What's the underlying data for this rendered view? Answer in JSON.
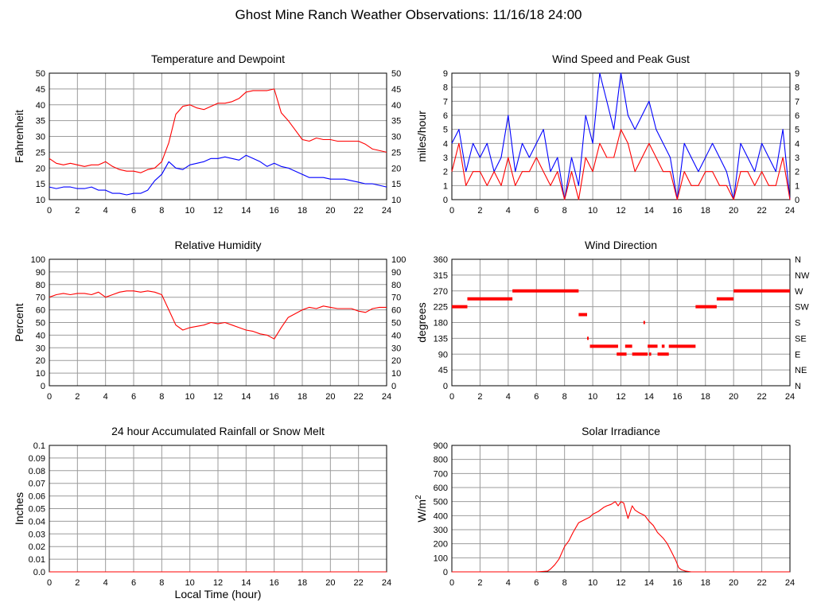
{
  "title": "Ghost Mine Ranch Weather Observations: 11/16/18 24:00",
  "colors": {
    "series_red": "#ff0000",
    "series_blue": "#0000ff",
    "grid": "#9b9b9b",
    "frame": "#000000"
  },
  "footer_xlabel": "Local Time (hour)",
  "chart_data": [
    {
      "id": "temp",
      "type": "line",
      "title": "Temperature and Dewpoint",
      "xlabel": "",
      "ylabel": "Fahrenheit",
      "xlim": [
        0,
        24
      ],
      "xticks": [
        0,
        2,
        4,
        6,
        8,
        10,
        12,
        14,
        16,
        18,
        20,
        22,
        24
      ],
      "ylim": [
        10,
        50
      ],
      "yticks": [
        10,
        15,
        20,
        25,
        30,
        35,
        40,
        45,
        50
      ],
      "right_ticks": [
        "10",
        "15",
        "20",
        "25",
        "30",
        "35",
        "40",
        "45",
        "50"
      ],
      "grid": true,
      "series": [
        {
          "color": "#ff0000",
          "x": [
            0,
            0.5,
            1,
            1.5,
            2,
            2.5,
            3,
            3.5,
            4,
            4.5,
            5,
            5.5,
            6,
            6.5,
            7,
            7.5,
            8,
            8.5,
            9,
            9.5,
            10,
            10.5,
            11,
            11.5,
            12,
            12.5,
            13,
            13.5,
            14,
            14.5,
            15,
            15.5,
            16,
            16.5,
            17,
            17.5,
            18,
            18.5,
            19,
            19.5,
            20,
            20.5,
            21,
            21.5,
            22,
            22.5,
            23,
            23.5,
            24
          ],
          "y": [
            23,
            21.5,
            21,
            21.5,
            21,
            20.5,
            21,
            21,
            22,
            20.5,
            19.5,
            19,
            19,
            18.5,
            19.5,
            20,
            22,
            28,
            37,
            39.5,
            40,
            39,
            38.5,
            39.5,
            40.5,
            40.5,
            41,
            42,
            44,
            44.5,
            44.5,
            44.5,
            45,
            37.5,
            35,
            32,
            29,
            28.5,
            29.5,
            29,
            29,
            28.5,
            28.5,
            28.5,
            28.5,
            27.5,
            26,
            25.5,
            25
          ]
        },
        {
          "color": "#0000ff",
          "x": [
            0,
            0.5,
            1,
            1.5,
            2,
            2.5,
            3,
            3.5,
            4,
            4.5,
            5,
            5.5,
            6,
            6.5,
            7,
            7.5,
            8,
            8.5,
            9,
            9.5,
            10,
            10.5,
            11,
            11.5,
            12,
            12.5,
            13,
            13.5,
            14,
            14.5,
            15,
            15.5,
            16,
            16.5,
            17,
            17.5,
            18,
            18.5,
            19,
            19.5,
            20,
            20.5,
            21,
            21.5,
            22,
            22.5,
            23,
            23.5,
            24
          ],
          "y": [
            14,
            13.5,
            14,
            14,
            13.5,
            13.5,
            14,
            13,
            13,
            12,
            12,
            11.5,
            12,
            12,
            13,
            16,
            18,
            22,
            20,
            19.5,
            21,
            21.5,
            22,
            23,
            23,
            23.5,
            23,
            22.5,
            24,
            23,
            22,
            20.5,
            21.5,
            20.5,
            20,
            19,
            18,
            17,
            17,
            17,
            16.5,
            16.5,
            16.5,
            16,
            15.5,
            15,
            15,
            14.5,
            14
          ]
        }
      ]
    },
    {
      "id": "wind",
      "type": "line",
      "title": "Wind Speed and Peak Gust",
      "xlabel": "",
      "ylabel": "miles/hour",
      "xlim": [
        0,
        24
      ],
      "xticks": [
        0,
        2,
        4,
        6,
        8,
        10,
        12,
        14,
        16,
        18,
        20,
        22,
        24
      ],
      "ylim": [
        0,
        9
      ],
      "yticks": [
        0,
        1,
        2,
        3,
        4,
        5,
        6,
        7,
        8,
        9
      ],
      "right_ticks": [
        "0",
        "1",
        "2",
        "3",
        "4",
        "5",
        "6",
        "7",
        "8",
        "9"
      ],
      "grid": true,
      "series": [
        {
          "color": "#0000ff",
          "x": [
            0,
            0.5,
            1,
            1.5,
            2,
            2.5,
            3,
            3.5,
            4,
            4.5,
            5,
            5.5,
            6,
            6.5,
            7,
            7.5,
            8,
            8.5,
            9,
            9.5,
            10,
            10.5,
            11,
            11.5,
            12,
            12.5,
            13,
            13.5,
            14,
            14.5,
            15,
            15.5,
            16,
            16.5,
            17,
            17.5,
            18,
            18.5,
            19,
            19.5,
            20,
            20.5,
            21,
            21.5,
            22,
            22.5,
            23,
            23.5,
            24
          ],
          "y": [
            4,
            5,
            2,
            4,
            3,
            4,
            2,
            3,
            6,
            2,
            4,
            3,
            4,
            5,
            2,
            3,
            0,
            3,
            1,
            6,
            4,
            9,
            7,
            5,
            9,
            6,
            5,
            6,
            7,
            5,
            4,
            3,
            0,
            4,
            3,
            2,
            3,
            4,
            3,
            2,
            0,
            4,
            3,
            2,
            4,
            3,
            2,
            5,
            0
          ]
        },
        {
          "color": "#ff0000",
          "x": [
            0,
            0.5,
            1,
            1.5,
            2,
            2.5,
            3,
            3.5,
            4,
            4.5,
            5,
            5.5,
            6,
            6.5,
            7,
            7.5,
            8,
            8.5,
            9,
            9.5,
            10,
            10.5,
            11,
            11.5,
            12,
            12.5,
            13,
            13.5,
            14,
            14.5,
            15,
            15.5,
            16,
            16.5,
            17,
            17.5,
            18,
            18.5,
            19,
            19.5,
            20,
            20.5,
            21,
            21.5,
            22,
            22.5,
            23,
            23.5,
            24
          ],
          "y": [
            2,
            4,
            1,
            2,
            2,
            1,
            2,
            1,
            3,
            1,
            2,
            2,
            3,
            2,
            1,
            2,
            0,
            2,
            0,
            3,
            2,
            4,
            3,
            3,
            5,
            4,
            2,
            3,
            4,
            3,
            2,
            2,
            0,
            2,
            1,
            1,
            2,
            2,
            1,
            1,
            0,
            2,
            2,
            1,
            2,
            1,
            1,
            3,
            0
          ]
        }
      ]
    },
    {
      "id": "rh",
      "type": "line",
      "title": "Relative Humidity",
      "xlabel": "",
      "ylabel": "Percent",
      "xlim": [
        0,
        24
      ],
      "xticks": [
        0,
        2,
        4,
        6,
        8,
        10,
        12,
        14,
        16,
        18,
        20,
        22,
        24
      ],
      "ylim": [
        0,
        100
      ],
      "yticks": [
        0,
        10,
        20,
        30,
        40,
        50,
        60,
        70,
        80,
        90,
        100
      ],
      "right_ticks": [
        "0",
        "10",
        "20",
        "30",
        "40",
        "50",
        "60",
        "70",
        "80",
        "90",
        "100"
      ],
      "grid": true,
      "series": [
        {
          "color": "#ff0000",
          "x": [
            0,
            0.5,
            1,
            1.5,
            2,
            2.5,
            3,
            3.5,
            4,
            4.5,
            5,
            5.5,
            6,
            6.5,
            7,
            7.5,
            8,
            8.5,
            9,
            9.5,
            10,
            10.5,
            11,
            11.5,
            12,
            12.5,
            13,
            13.5,
            14,
            14.5,
            15,
            15.5,
            16,
            16.5,
            17,
            17.5,
            18,
            18.5,
            19,
            19.5,
            20,
            20.5,
            21,
            21.5,
            22,
            22.5,
            23,
            23.5,
            24
          ],
          "y": [
            70,
            72,
            73,
            72,
            73,
            73,
            72,
            74,
            70,
            72,
            74,
            75,
            75,
            74,
            75,
            74,
            72,
            60,
            48,
            44,
            46,
            47,
            48,
            50,
            49,
            50,
            48,
            46,
            44,
            43,
            41,
            40,
            37,
            46,
            54,
            57,
            60,
            62,
            61,
            63,
            62,
            61,
            61,
            61,
            59,
            58,
            61,
            62,
            62
          ]
        }
      ]
    },
    {
      "id": "winddir",
      "type": "scatter",
      "title": "Wind Direction",
      "xlabel": "",
      "ylabel": "degrees",
      "xlim": [
        0,
        24
      ],
      "xticks": [
        0,
        2,
        4,
        6,
        8,
        10,
        12,
        14,
        16,
        18,
        20,
        22,
        24
      ],
      "ylim": [
        0,
        360
      ],
      "yticks": [
        0,
        45,
        90,
        135,
        180,
        225,
        270,
        315,
        360
      ],
      "right_ticks": [
        "N",
        "NE",
        "E",
        "SE",
        "S",
        "SW",
        "W",
        "NW",
        "N"
      ],
      "grid": true,
      "segments": [
        {
          "x0": 0,
          "x1": 1.1,
          "y": 225
        },
        {
          "x0": 1.1,
          "x1": 4.3,
          "y": 247.5
        },
        {
          "x0": 4.3,
          "x1": 9.0,
          "y": 270
        },
        {
          "x0": 9.0,
          "x1": 9.6,
          "y": 202.5
        },
        {
          "x0": 9.6,
          "x1": 9.7,
          "y": 135
        },
        {
          "x0": 9.8,
          "x1": 11.8,
          "y": 112.5
        },
        {
          "x0": 11.7,
          "x1": 12.4,
          "y": 90
        },
        {
          "x0": 12.3,
          "x1": 12.8,
          "y": 112.5
        },
        {
          "x0": 12.8,
          "x1": 13.9,
          "y": 90
        },
        {
          "x0": 13.6,
          "x1": 13.65,
          "y": 180
        },
        {
          "x0": 13.9,
          "x1": 14.6,
          "y": 112.5
        },
        {
          "x0": 14.0,
          "x1": 14.15,
          "y": 90
        },
        {
          "x0": 14.6,
          "x1": 15.4,
          "y": 90
        },
        {
          "x0": 14.9,
          "x1": 15.1,
          "y": 112.5
        },
        {
          "x0": 15.4,
          "x1": 17.3,
          "y": 112.5
        },
        {
          "x0": 17.3,
          "x1": 18.8,
          "y": 225
        },
        {
          "x0": 18.8,
          "x1": 20.0,
          "y": 247.5
        },
        {
          "x0": 20.0,
          "x1": 24.0,
          "y": 270
        }
      ]
    },
    {
      "id": "rain",
      "type": "line",
      "title": "24 hour Accumulated Rainfall or Snow Melt",
      "xlabel": "",
      "ylabel": "Inches",
      "xlim": [
        0,
        24
      ],
      "xticks": [
        0,
        2,
        4,
        6,
        8,
        10,
        12,
        14,
        16,
        18,
        20,
        22,
        24
      ],
      "ylim": [
        0,
        0.1
      ],
      "yticks": [
        0,
        0.01,
        0.02,
        0.03,
        0.04,
        0.05,
        0.06,
        0.07,
        0.08,
        0.09,
        0.1
      ],
      "ytick_labels": [
        "0.0",
        "0.01",
        "0.02",
        "0.03",
        "0.04",
        "0.05",
        "0.06",
        "0.07",
        "0.08",
        "0.09",
        "0.1"
      ],
      "grid": true,
      "series": [
        {
          "color": "#ff0000",
          "x": [
            0,
            24
          ],
          "y": [
            0,
            0
          ]
        }
      ]
    },
    {
      "id": "solar",
      "type": "line",
      "title": "Solar Irradiance",
      "xlabel": "",
      "ylabel": "W/m",
      "ylabel_sup": "2",
      "xlim": [
        0,
        24
      ],
      "xticks": [
        0,
        2,
        4,
        6,
        8,
        10,
        12,
        14,
        16,
        18,
        20,
        22,
        24
      ],
      "ylim": [
        0,
        900
      ],
      "yticks": [
        0,
        100,
        200,
        300,
        400,
        500,
        600,
        700,
        800,
        900
      ],
      "grid": true,
      "series": [
        {
          "color": "#ff0000",
          "x": [
            0,
            6,
            6.8,
            7.0,
            7.3,
            7.6,
            8,
            8.3,
            8.6,
            9,
            9.4,
            9.8,
            10,
            10.4,
            10.8,
            11,
            11.3,
            11.6,
            11.8,
            12,
            12.2,
            12.5,
            12.8,
            13,
            13.3,
            13.7,
            14,
            14.3,
            14.6,
            15,
            15.3,
            15.6,
            15.9,
            16.1,
            16.3,
            16.6,
            17,
            17.5,
            18,
            24
          ],
          "y": [
            0,
            0,
            5,
            20,
            50,
            90,
            180,
            220,
            280,
            350,
            370,
            390,
            410,
            430,
            460,
            470,
            480,
            500,
            470,
            500,
            490,
            380,
            470,
            440,
            420,
            400,
            360,
            330,
            280,
            240,
            200,
            140,
            80,
            30,
            15,
            5,
            0,
            0,
            0,
            0
          ]
        }
      ]
    }
  ]
}
